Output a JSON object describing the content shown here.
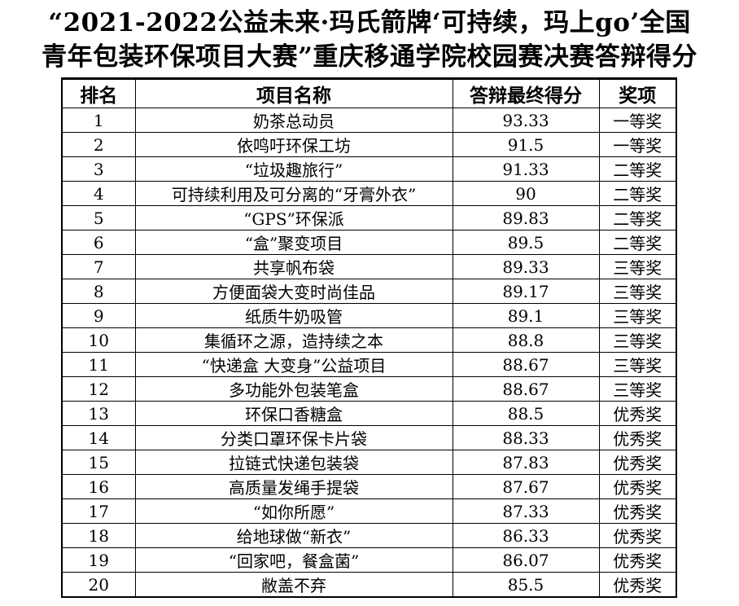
{
  "title": {
    "line1": "“2021-2022公益未来·玛氏箭牌‘可持续，玛上go’全国",
    "line2": "青年包装环保项目大赛”重庆移通学院校园赛决赛答辩得分"
  },
  "table": {
    "headers": [
      "排名",
      "项目名称",
      "答辩最终得分",
      "奖项"
    ],
    "rows": [
      {
        "rank": "1",
        "name": "奶茶总动员",
        "score": "93.33",
        "award": "一等奖"
      },
      {
        "rank": "2",
        "name": "依鸣吁环保工坊",
        "score": "91.5",
        "award": "一等奖"
      },
      {
        "rank": "3",
        "name": "“垃圾趣旅行”",
        "score": "91.33",
        "award": "二等奖"
      },
      {
        "rank": "4",
        "name": "可持续利用及可分离的“牙膏外衣”",
        "score": "90",
        "award": "二等奖"
      },
      {
        "rank": "5",
        "name": "“GPS”环保派",
        "score": "89.83",
        "award": "二等奖"
      },
      {
        "rank": "6",
        "name": "“盒”聚变项目",
        "score": "89.5",
        "award": "二等奖"
      },
      {
        "rank": "7",
        "name": "共享帆布袋",
        "score": "89.33",
        "award": "三等奖"
      },
      {
        "rank": "8",
        "name": "方便面袋大变时尚佳品",
        "score": "89.17",
        "award": "三等奖"
      },
      {
        "rank": "9",
        "name": "纸质牛奶吸管",
        "score": "89.1",
        "award": "三等奖"
      },
      {
        "rank": "10",
        "name": "集循环之源，造持续之本",
        "score": "88.8",
        "award": "三等奖"
      },
      {
        "rank": "11",
        "name": "“快递盒 大变身”公益项目",
        "score": "88.67",
        "award": "三等奖"
      },
      {
        "rank": "12",
        "name": "多功能外包装笔盒",
        "score": "88.67",
        "award": "三等奖"
      },
      {
        "rank": "13",
        "name": "环保口香糖盒",
        "score": "88.5",
        "award": "优秀奖"
      },
      {
        "rank": "14",
        "name": "分类口罩环保卡片袋",
        "score": "88.33",
        "award": "优秀奖"
      },
      {
        "rank": "15",
        "name": "拉链式快递包装袋",
        "score": "87.83",
        "award": "优秀奖"
      },
      {
        "rank": "16",
        "name": "高质量发绳手提袋",
        "score": "87.67",
        "award": "优秀奖"
      },
      {
        "rank": "17",
        "name": "“如你所愿”",
        "score": "87.33",
        "award": "优秀奖"
      },
      {
        "rank": "18",
        "name": "给地球做“新衣”",
        "score": "86.33",
        "award": "优秀奖"
      },
      {
        "rank": "19",
        "name": "“回家吧，餐盒菌”",
        "score": "86.07",
        "award": "优秀奖"
      },
      {
        "rank": "20",
        "name": "敝盖不弃",
        "score": "85.5",
        "award": "优秀奖"
      }
    ]
  }
}
